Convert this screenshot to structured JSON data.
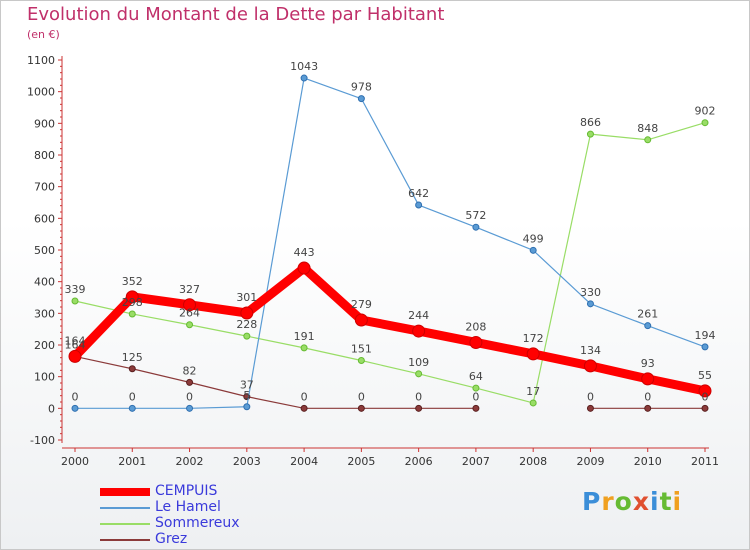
{
  "title": "Evolution du Montant de la Dette par Habitant",
  "unit": "(en €)",
  "logo": "Proxiti",
  "chart_data": {
    "type": "line",
    "title": "Evolution du Montant de la Dette par Habitant",
    "ylabel": "(en €)",
    "xlabel": "",
    "x": [
      "2000",
      "2001",
      "2002",
      "2003",
      "2004",
      "2005",
      "2006",
      "2007",
      "2008",
      "2009",
      "2010",
      "2011"
    ],
    "yticks": [
      -100,
      0,
      100,
      200,
      300,
      400,
      500,
      600,
      700,
      800,
      900,
      1000,
      1100
    ],
    "ylim": [
      -100,
      1100
    ],
    "grid": false,
    "legend_position": "bottom-left",
    "series": [
      {
        "name": "CEMPUIS",
        "color": "#ff0000",
        "values": [
          164,
          352,
          327,
          301,
          443,
          279,
          244,
          208,
          172,
          134,
          93,
          55
        ]
      },
      {
        "name": "Le Hamel",
        "color": "#5a9bd4",
        "values": [
          0,
          0,
          0,
          5,
          1043,
          978,
          642,
          572,
          499,
          330,
          261,
          194
        ]
      },
      {
        "name": "Sommereux",
        "color": "#99dd66",
        "values": [
          339,
          298,
          264,
          228,
          191,
          151,
          109,
          64,
          17,
          866,
          848,
          902
        ]
      },
      {
        "name": "Grez",
        "color": "#8b3a3a",
        "values": [
          164,
          125,
          82,
          37,
          0,
          0,
          0,
          0,
          null,
          0,
          0,
          0
        ]
      }
    ]
  }
}
